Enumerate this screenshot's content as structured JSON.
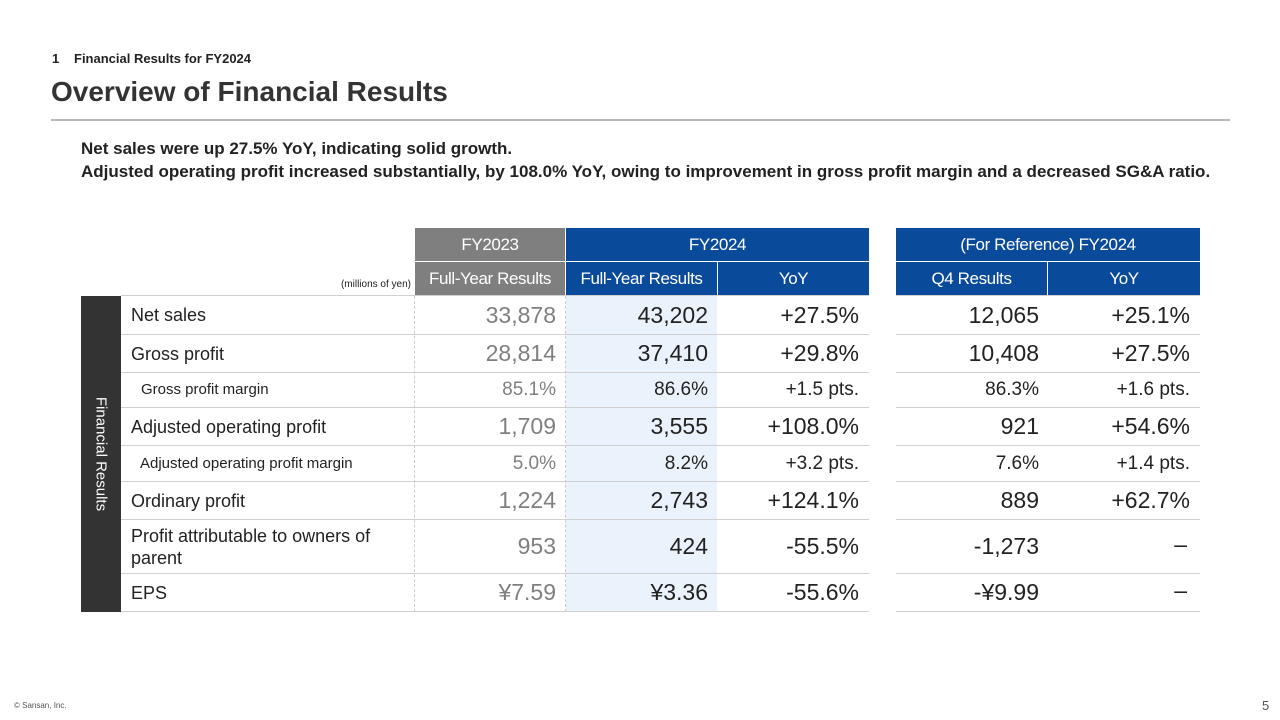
{
  "header": {
    "section_number": "1",
    "section_title": "Financial Results for FY2024",
    "page_title": "Overview of Financial Results"
  },
  "summary": {
    "line1": "Net sales were up 27.5% YoY, indicating solid growth.",
    "line2": "Adjusted operating profit increased substantially, by 108.0% YoY, owing to improvement in gross profit margin and a decreased SG&A ratio."
  },
  "table": {
    "units_note": "(millions of yen)",
    "side_label": "Financial Results",
    "group_headers": {
      "fy2023": "FY2023",
      "fy2024": "FY2024",
      "reference": "(For Reference) FY2024"
    },
    "column_headers": {
      "fy2023_full": "Full-Year Results",
      "fy2024_full": "Full-Year Results",
      "fy2024_yoy": "YoY",
      "q4_results": "Q4 Results",
      "q4_yoy": "YoY"
    },
    "rows": [
      {
        "label": "Net sales",
        "fy2023": "33,878",
        "fy2024": "43,202",
        "yoy": "+27.5%",
        "q4": "12,065",
        "q4_yoy": "+25.1%"
      },
      {
        "label": "Gross profit",
        "fy2023": "28,814",
        "fy2024": "37,410",
        "yoy": "+29.8%",
        "q4": "10,408",
        "q4_yoy": "+27.5%"
      },
      {
        "label": "Gross profit margin",
        "fy2023": "85.1%",
        "fy2024": "86.6%",
        "yoy": "+1.5 pts.",
        "q4": "86.3%",
        "q4_yoy": "+1.6 pts."
      },
      {
        "label": "Adjusted operating profit",
        "fy2023": "1,709",
        "fy2024": "3,555",
        "yoy": "+108.0%",
        "q4": "921",
        "q4_yoy": "+54.6%"
      },
      {
        "label": "Adjusted operating profit margin",
        "fy2023": "5.0%",
        "fy2024": "8.2%",
        "yoy": "+3.2 pts.",
        "q4": "7.6%",
        "q4_yoy": "+1.4 pts."
      },
      {
        "label": "Ordinary profit",
        "fy2023": "1,224",
        "fy2024": "2,743",
        "yoy": "+124.1%",
        "q4": "889",
        "q4_yoy": "+62.7%"
      },
      {
        "label": "Profit attributable to owners of parent",
        "fy2023": "953",
        "fy2024": "424",
        "yoy": "-55.5%",
        "q4": "-1,273",
        "q4_yoy": "–"
      },
      {
        "label": "EPS",
        "fy2023": "¥7.59",
        "fy2024": "¥3.36",
        "yoy": "-55.6%",
        "q4": "-¥9.99",
        "q4_yoy": "–"
      }
    ]
  },
  "footer": {
    "copyright": "© Sansan, Inc.",
    "page_number": "5"
  }
}
